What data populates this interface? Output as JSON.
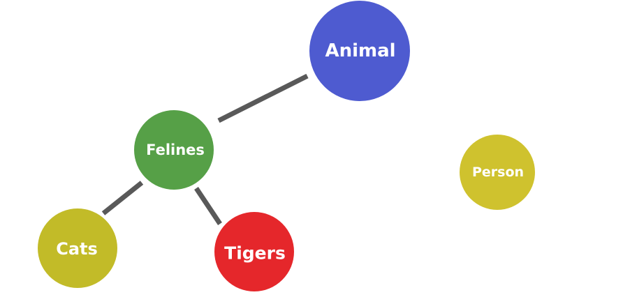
{
  "nodes": {
    "animal": {
      "label": "Animal",
      "color": "#4e5bd0"
    },
    "felines": {
      "label": "Felines",
      "color": "#56a047"
    },
    "cats": {
      "label": "Cats",
      "color": "#c2bb28"
    },
    "tigers": {
      "label": "Tigers",
      "color": "#e5272b"
    },
    "person": {
      "label": "Person",
      "color": "#cfc22e"
    }
  },
  "edges": [
    {
      "from": "animal",
      "to": "felines"
    },
    {
      "from": "felines",
      "to": "cats"
    },
    {
      "from": "felines",
      "to": "tigers"
    }
  ]
}
